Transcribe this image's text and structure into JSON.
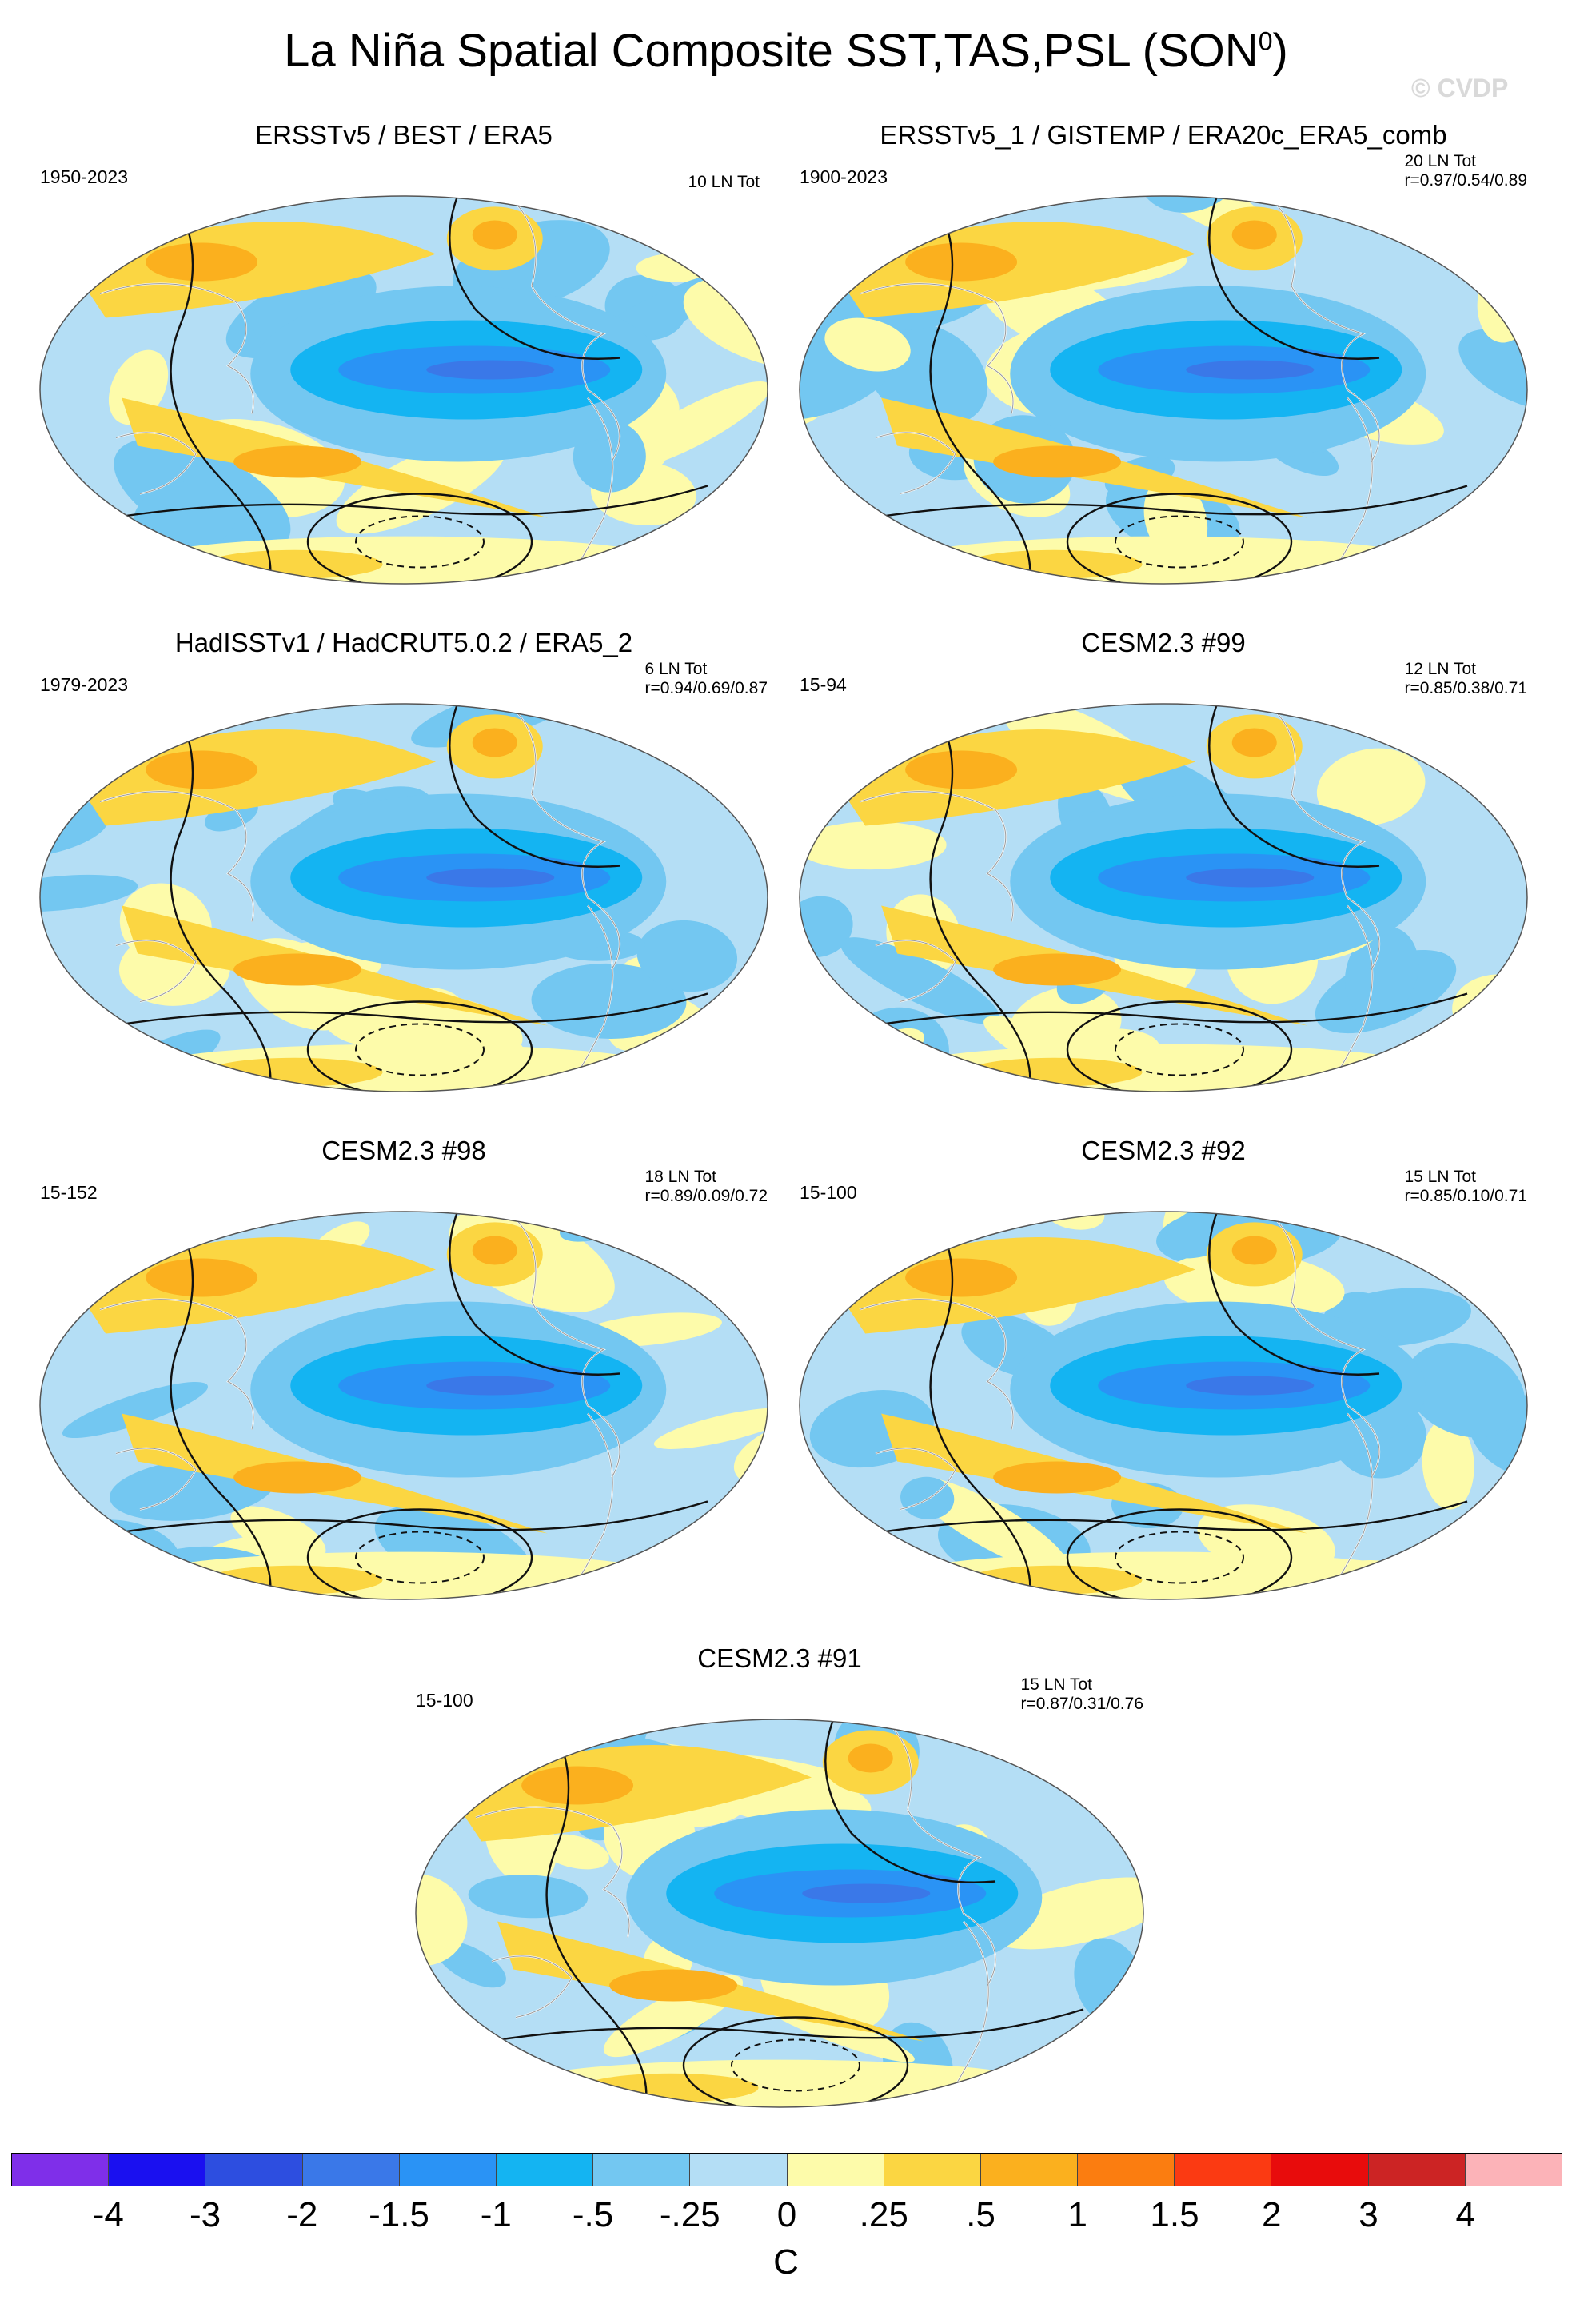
{
  "figure": {
    "title": "La Niña Spatial Composite SST,TAS,PSL (SON",
    "title_superscript": "0",
    "title_close": ")",
    "credit": "© CVDP"
  },
  "panels": [
    {
      "id": "p1",
      "title": "ERSSTv5 / BEST / ERA5",
      "period": "1950-2023",
      "count": "10 LN Tot",
      "stats": "",
      "seed": 11
    },
    {
      "id": "p2",
      "title": "ERSSTv5_1 / GISTEMP / ERA20c_ERA5_comb",
      "period": "1900-2023",
      "count": "20 LN Tot",
      "stats": "r=0.97/0.54/0.89",
      "seed": 23
    },
    {
      "id": "p3",
      "title": "HadISSTv1 / HadCRUT5.0.2 / ERA5_2",
      "period": "1979-2023",
      "count": "6 LN Tot",
      "stats": "r=0.94/0.69/0.87",
      "seed": 37
    },
    {
      "id": "p4",
      "title": "CESM2.3 #99",
      "period": "15-94",
      "count": "12 LN Tot",
      "stats": "r=0.85/0.38/0.71",
      "seed": 41
    },
    {
      "id": "p5",
      "title": "CESM2.3 #98",
      "period": "15-152",
      "count": "18 LN Tot",
      "stats": "r=0.89/0.09/0.72",
      "seed": 53
    },
    {
      "id": "p6",
      "title": "CESM2.3 #92",
      "period": "15-100",
      "count": "15 LN Tot",
      "stats": "r=0.85/0.10/0.71",
      "seed": 67
    },
    {
      "id": "p7",
      "title": "CESM2.3 #91",
      "period": "15-100",
      "count": "15 LN Tot",
      "stats": "r=0.87/0.31/0.76",
      "seed": 79
    }
  ],
  "colorbar": {
    "unit": "C",
    "colors": [
      "#7f2fe9",
      "#1a10f0",
      "#2d4ee0",
      "#3a78e8",
      "#2a93f5",
      "#14b4f2",
      "#73c7f1",
      "#b4def5",
      "#fdfbaa",
      "#fbd642",
      "#fbb01e",
      "#fb7d10",
      "#fb3a12",
      "#e80c0c",
      "#cc2424",
      "#fcb3b8"
    ],
    "ticks": [
      "-4",
      "-3",
      "-2",
      "-1.5",
      "-1",
      "-.5",
      "-.25",
      "0",
      ".25",
      ".5",
      "1",
      "1.5",
      "2",
      "3",
      "4"
    ]
  }
}
